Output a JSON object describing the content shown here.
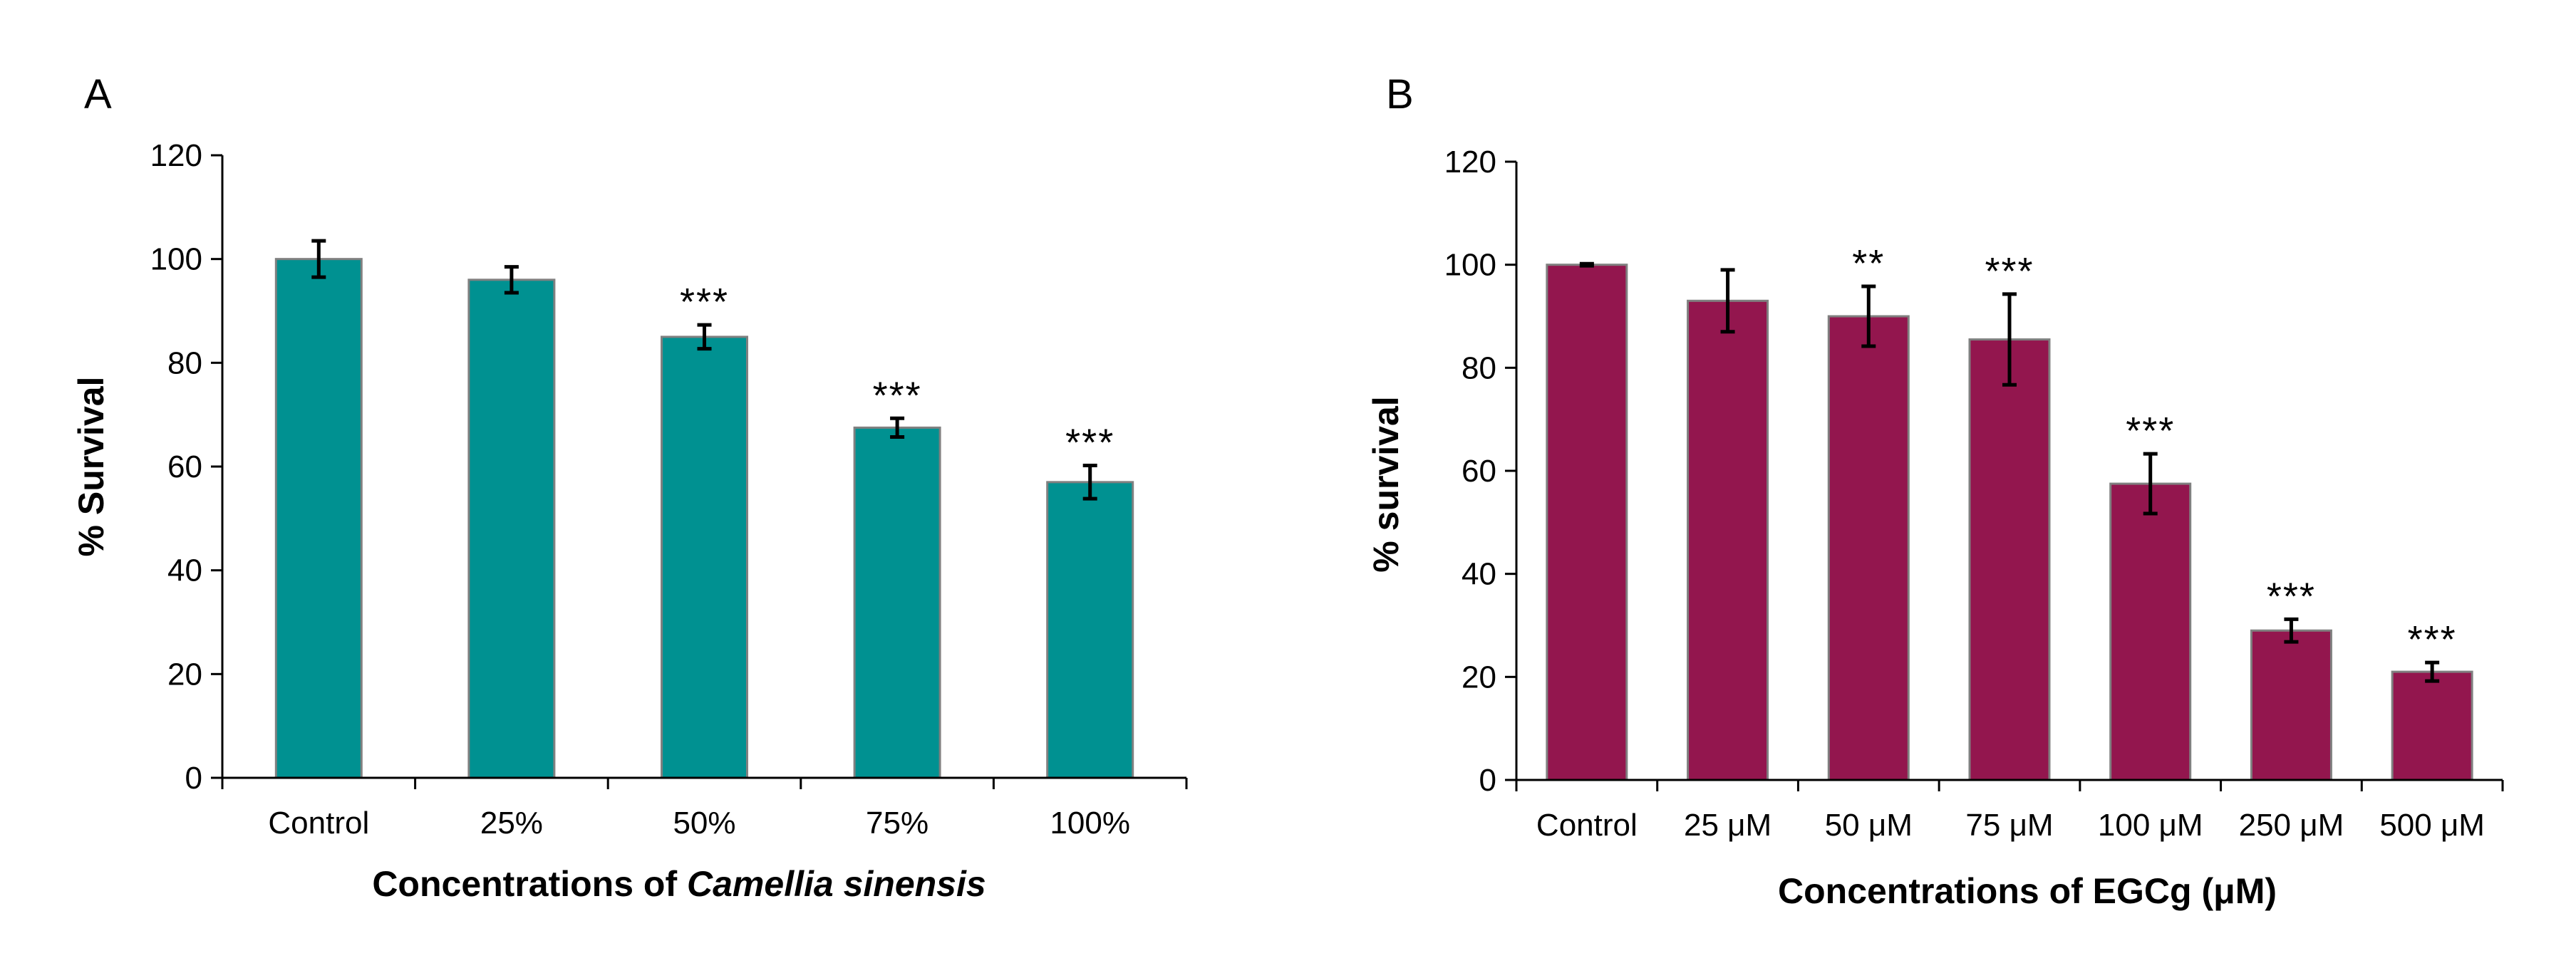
{
  "chart_data": [
    {
      "type": "bar",
      "panel_label": "A",
      "title": "",
      "xlabel_prefix": "Concentrations of ",
      "xlabel_italic": "Camellia sinensis",
      "ylabel": "% Survival",
      "ylim": [
        0,
        120
      ],
      "yticks": [
        0,
        20,
        40,
        60,
        80,
        100,
        120
      ],
      "categories": [
        "Control",
        "25%",
        "50%",
        "75%",
        "100%"
      ],
      "values": [
        100,
        96,
        85,
        67.5,
        57
      ],
      "errors": [
        3.5,
        2.5,
        2.3,
        1.8,
        3.2
      ],
      "significance": [
        "",
        "",
        "***",
        "***",
        "***"
      ],
      "bar_color": "#009191",
      "bar_edge_color": "#808080",
      "grid": false,
      "legend": "none"
    },
    {
      "type": "bar",
      "panel_label": "B",
      "title": "",
      "xlabel": "Concentrations of EGCg (μM)",
      "ylabel": "% survival",
      "ylim": [
        0,
        120
      ],
      "yticks": [
        0,
        20,
        40,
        60,
        80,
        100,
        120
      ],
      "categories": [
        "Control",
        "25 μM",
        "50 μM",
        "75 μM",
        "100 μM",
        "250 μM",
        "500 μM"
      ],
      "values": [
        100,
        93,
        90,
        85.5,
        57.5,
        29,
        21
      ],
      "errors": [
        0.2,
        6,
        5.8,
        8.8,
        5.8,
        2.2,
        1.8
      ],
      "significance": [
        "",
        "",
        "**",
        "***",
        "***",
        "***",
        "***"
      ],
      "bar_color": "#93164E",
      "bar_edge_color": "#808080",
      "grid": false,
      "legend": "none"
    }
  ]
}
